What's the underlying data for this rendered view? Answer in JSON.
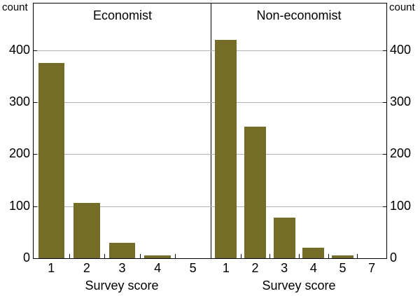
{
  "colors": {
    "bar": "#736D28",
    "grid": "#B3B3B3",
    "axis": "#000000",
    "background": "#FFFFFF",
    "text": "#000000"
  },
  "chart_data": [
    {
      "type": "bar",
      "title": "Economist",
      "xlabel": "Survey score",
      "ylabel": "count",
      "categories": [
        "1",
        "2",
        "3",
        "4",
        "5"
      ],
      "values": [
        375,
        107,
        30,
        5,
        0
      ],
      "ylim": [
        0,
        490
      ],
      "yticks": [
        0,
        100,
        200,
        300,
        400
      ],
      "grid": true,
      "legend": "none"
    },
    {
      "type": "bar",
      "title": "Non-economist",
      "xlabel": "Survey score",
      "ylabel": "count",
      "categories": [
        "1",
        "2",
        "3",
        "4",
        "5",
        "7"
      ],
      "values": [
        420,
        253,
        78,
        20,
        5,
        0
      ],
      "ylim": [
        0,
        490
      ],
      "yticks": [
        0,
        100,
        200,
        300,
        400
      ],
      "grid": true,
      "legend": "none"
    }
  ]
}
